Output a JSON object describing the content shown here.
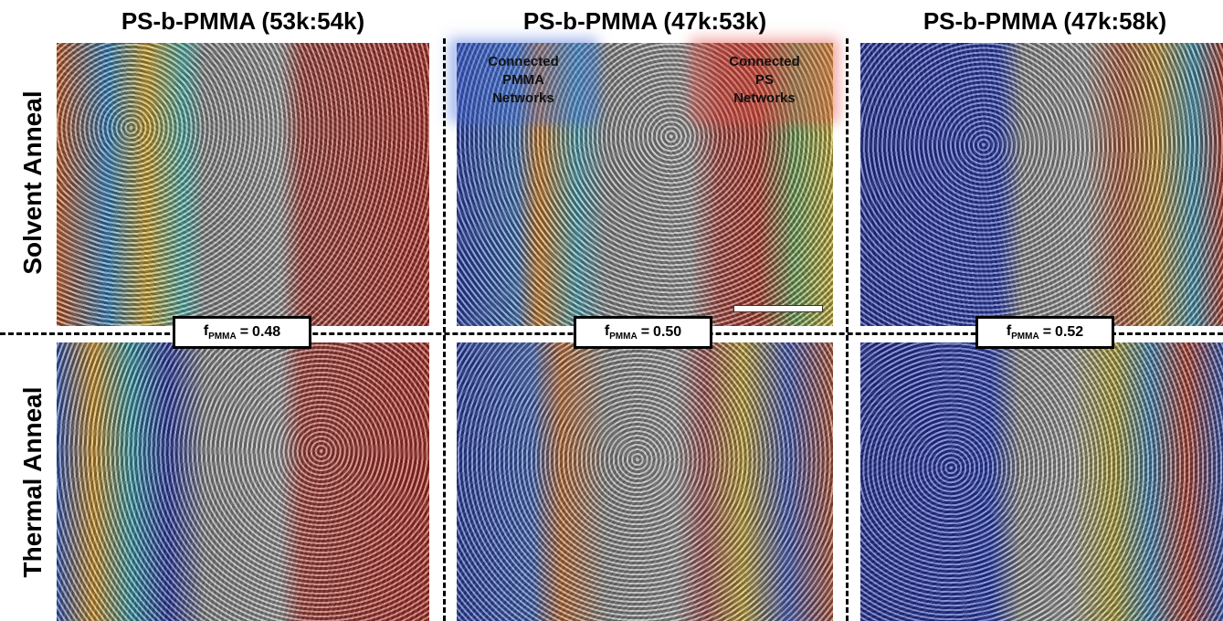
{
  "columns": [
    {
      "title": "PS-b-PMMA (53k:54k)",
      "label": {
        "symbol": "f",
        "subscript": "PMMA",
        "relation": "=",
        "value": "0.48"
      }
    },
    {
      "title": "PS-b-PMMA (47k:53k)",
      "label": {
        "symbol": "f",
        "subscript": "PMMA",
        "relation": "=",
        "value": "0.50"
      }
    },
    {
      "title": "PS-b-PMMA (47k:58k)",
      "label": {
        "symbol": "f",
        "subscript": "PMMA",
        "relation": "=",
        "value": "0.52"
      }
    }
  ],
  "rows": [
    "Solvent Anneal",
    "Thermal Anneal"
  ],
  "annotations": [
    "Connected\nPMMA\nNetworks",
    "Connected\nPS\nNetworks"
  ]
}
